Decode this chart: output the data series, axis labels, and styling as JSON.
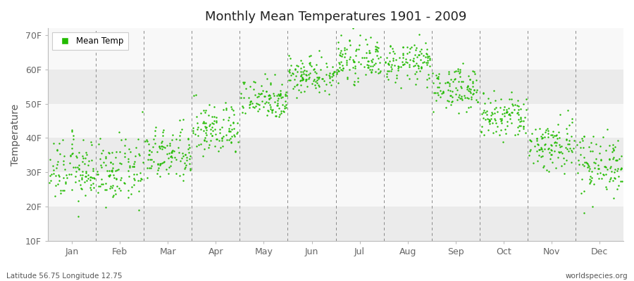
{
  "title": "Monthly Mean Temperatures 1901 - 2009",
  "ylabel": "Temperature",
  "bottom_left_text": "Latitude 56.75 Longitude 12.75",
  "bottom_right_text": "worldspecies.org",
  "legend_label": "Mean Temp",
  "dot_color": "#22BB00",
  "yticks": [
    10,
    20,
    30,
    40,
    50,
    60,
    70
  ],
  "ytick_labels": [
    "10F",
    "20F",
    "30F",
    "40F",
    "50F",
    "60F",
    "70F"
  ],
  "ylim": [
    10,
    72
  ],
  "months": [
    "Jan",
    "Feb",
    "Mar",
    "Apr",
    "May",
    "Jun",
    "Jul",
    "Aug",
    "Sep",
    "Oct",
    "Nov",
    "Dec"
  ],
  "mean_temps_F": [
    30.5,
    30.0,
    35.0,
    42.5,
    51.5,
    58.5,
    62.5,
    62.0,
    54.5,
    46.0,
    38.0,
    32.5
  ],
  "std_devs_F": [
    4.5,
    4.5,
    4.0,
    3.8,
    3.0,
    2.8,
    2.8,
    2.8,
    3.0,
    3.5,
    4.0,
    4.5
  ],
  "n_years": 109,
  "background_bands": [
    {
      "ymin": 10,
      "ymax": 20,
      "color": "#ebebeb"
    },
    {
      "ymin": 20,
      "ymax": 30,
      "color": "#f8f8f8"
    },
    {
      "ymin": 30,
      "ymax": 40,
      "color": "#ebebeb"
    },
    {
      "ymin": 40,
      "ymax": 50,
      "color": "#f8f8f8"
    },
    {
      "ymin": 50,
      "ymax": 60,
      "color": "#ebebeb"
    },
    {
      "ymin": 60,
      "ymax": 72,
      "color": "#f8f8f8"
    }
  ],
  "fig_width": 9.0,
  "fig_height": 4.0,
  "dpi": 100
}
